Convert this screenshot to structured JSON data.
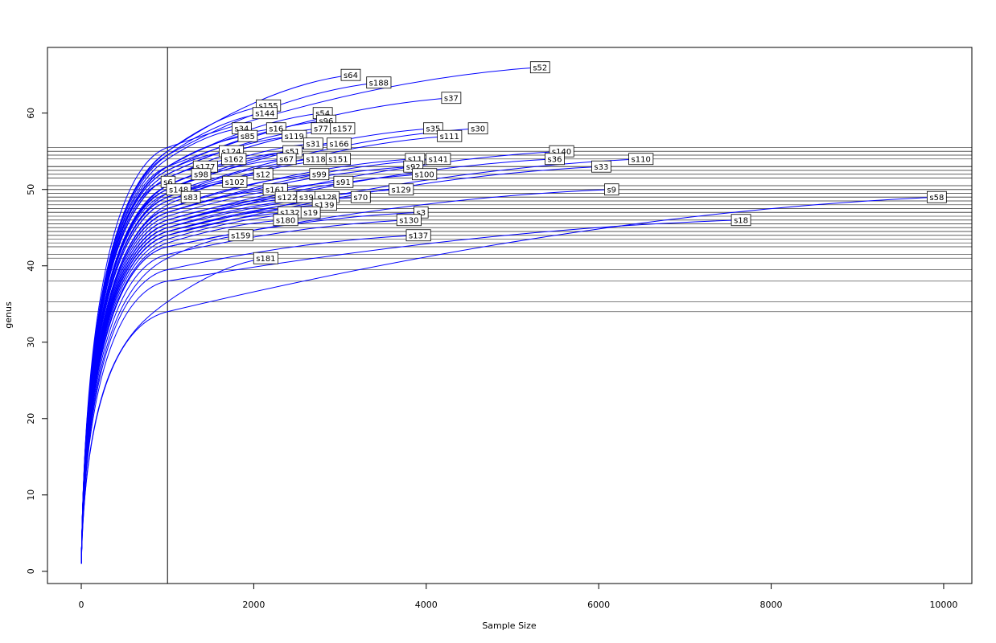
{
  "chart_data": {
    "type": "rarefaction",
    "xlabel": "Sample Size",
    "ylabel": "genus",
    "color": "#0000ff",
    "xlim": [
      -392,
      10327
    ],
    "ylim": [
      -1.6,
      68.6
    ],
    "xticks": [
      0,
      2000,
      4000,
      6000,
      8000,
      10000
    ],
    "yticks": [
      0,
      10,
      20,
      30,
      40,
      50,
      60
    ],
    "vline": 1000,
    "series": [
      {
        "name": "s64",
        "x": [
          1,
          1000,
          3125
        ],
        "values": [
          1,
          55,
          65
        ]
      },
      {
        "name": "s188",
        "x": [
          1,
          1000,
          3450
        ],
        "values": [
          1,
          54.5,
          64
        ]
      },
      {
        "name": "s52",
        "x": [
          1,
          1000,
          5320
        ],
        "values": [
          1,
          55.5,
          66
        ]
      },
      {
        "name": "s37",
        "x": [
          1,
          1000,
          4290
        ],
        "values": [
          1,
          53,
          62
        ]
      },
      {
        "name": "s155",
        "x": [
          1,
          1000,
          2170
        ],
        "values": [
          1,
          55,
          61
        ]
      },
      {
        "name": "s144",
        "x": [
          1,
          1000,
          2130
        ],
        "values": [
          1,
          54.5,
          60
        ]
      },
      {
        "name": "s54",
        "x": [
          1,
          1000,
          2800
        ],
        "values": [
          1,
          53,
          60
        ]
      },
      {
        "name": "s96",
        "x": [
          1,
          1000,
          2840
        ],
        "values": [
          1,
          52.5,
          59
        ]
      },
      {
        "name": "s34",
        "x": [
          1,
          1000,
          1860
        ],
        "values": [
          1,
          54,
          58
        ]
      },
      {
        "name": "s16",
        "x": [
          1,
          1000,
          2260
        ],
        "values": [
          1,
          53,
          58
        ]
      },
      {
        "name": "s77",
        "x": [
          1,
          1000,
          2780
        ],
        "values": [
          1,
          52,
          58
        ]
      },
      {
        "name": "s157",
        "x": [
          1,
          1000,
          3030
        ],
        "values": [
          1,
          51.5,
          58
        ]
      },
      {
        "name": "s35",
        "x": [
          1,
          1000,
          4080
        ],
        "values": [
          1,
          50,
          58
        ]
      },
      {
        "name": "s30",
        "x": [
          1,
          1000,
          4600
        ],
        "values": [
          1,
          49.5,
          58
        ]
      },
      {
        "name": "s85",
        "x": [
          1,
          1000,
          1930
        ],
        "values": [
          1,
          53,
          57
        ]
      },
      {
        "name": "s119",
        "x": [
          1,
          1000,
          2470
        ],
        "values": [
          1,
          52,
          57
        ]
      },
      {
        "name": "s111",
        "x": [
          1,
          1000,
          4270
        ],
        "values": [
          1,
          48.5,
          57
        ]
      },
      {
        "name": "s31",
        "x": [
          1,
          1000,
          2690
        ],
        "values": [
          1,
          50.5,
          56
        ]
      },
      {
        "name": "s166",
        "x": [
          1,
          1000,
          2990
        ],
        "values": [
          1,
          50,
          56
        ]
      },
      {
        "name": "s124",
        "x": [
          1,
          1000,
          1740
        ],
        "values": [
          1,
          52.5,
          55
        ]
      },
      {
        "name": "s51",
        "x": [
          1,
          1000,
          2450
        ],
        "values": [
          1,
          50.5,
          55
        ]
      },
      {
        "name": "s140",
        "x": [
          1,
          1000,
          5570
        ],
        "values": [
          1,
          46,
          55
        ]
      },
      {
        "name": "s162",
        "x": [
          1,
          1000,
          1770
        ],
        "values": [
          1,
          51.5,
          54
        ]
      },
      {
        "name": "s67",
        "x": [
          1,
          1000,
          2380
        ],
        "values": [
          1,
          50,
          54
        ]
      },
      {
        "name": "s118",
        "x": [
          1,
          1000,
          2720
        ],
        "values": [
          1,
          49,
          54
        ]
      },
      {
        "name": "s151",
        "x": [
          1,
          1000,
          2980
        ],
        "values": [
          1,
          48.5,
          54
        ]
      },
      {
        "name": "s11",
        "x": [
          1,
          1000,
          3870
        ],
        "values": [
          1,
          47.5,
          54
        ]
      },
      {
        "name": "s141",
        "x": [
          1,
          1000,
          4140
        ],
        "values": [
          1,
          47,
          54
        ]
      },
      {
        "name": "s36",
        "x": [
          1,
          1000,
          5490
        ],
        "values": [
          1,
          45.5,
          54
        ]
      },
      {
        "name": "s110",
        "x": [
          1,
          1000,
          6490
        ],
        "values": [
          1,
          44.5,
          54
        ]
      },
      {
        "name": "s177",
        "x": [
          1,
          1000,
          1440
        ],
        "values": [
          1,
          51.5,
          53
        ]
      },
      {
        "name": "s92",
        "x": [
          1,
          1000,
          3850
        ],
        "values": [
          1,
          47,
          53
        ]
      },
      {
        "name": "s33",
        "x": [
          1,
          1000,
          6030
        ],
        "values": [
          1,
          44,
          53
        ]
      },
      {
        "name": "s98",
        "x": [
          1,
          1000,
          1390
        ],
        "values": [
          1,
          50.5,
          52
        ]
      },
      {
        "name": "s12",
        "x": [
          1,
          1000,
          2110
        ],
        "values": [
          1,
          49,
          52
        ]
      },
      {
        "name": "s99",
        "x": [
          1,
          1000,
          2760
        ],
        "values": [
          1,
          47.5,
          52
        ]
      },
      {
        "name": "s100",
        "x": [
          1,
          1000,
          3980
        ],
        "values": [
          1,
          45.5,
          52
        ]
      },
      {
        "name": "s6",
        "x": [
          1,
          1007
        ],
        "values": [
          1,
          51
        ]
      },
      {
        "name": "s102",
        "x": [
          1,
          1000,
          1780
        ],
        "values": [
          1,
          49,
          51
        ]
      },
      {
        "name": "s91",
        "x": [
          1,
          1000,
          3040
        ],
        "values": [
          1,
          46.5,
          51
        ]
      },
      {
        "name": "s148",
        "x": [
          1,
          1000,
          1130
        ],
        "values": [
          1,
          49.5,
          50
        ]
      },
      {
        "name": "s161",
        "x": [
          1,
          1000,
          2250
        ],
        "values": [
          1,
          47,
          50
        ]
      },
      {
        "name": "s129",
        "x": [
          1,
          1000,
          3710
        ],
        "values": [
          1,
          45,
          50
        ]
      },
      {
        "name": "s9",
        "x": [
          1,
          1000,
          6150
        ],
        "values": [
          1,
          42.5,
          50
        ]
      },
      {
        "name": "s83",
        "x": [
          1,
          1000,
          1270
        ],
        "values": [
          1,
          48,
          49
        ]
      },
      {
        "name": "s122",
        "x": [
          1,
          1000,
          2390
        ],
        "values": [
          1,
          46,
          49
        ]
      },
      {
        "name": "s39",
        "x": [
          1,
          1000,
          2610
        ],
        "values": [
          1,
          45.5,
          49
        ]
      },
      {
        "name": "s128",
        "x": [
          1,
          1000,
          2850
        ],
        "values": [
          1,
          45,
          49
        ]
      },
      {
        "name": "s70",
        "x": [
          1,
          1000,
          3240
        ],
        "values": [
          1,
          44.5,
          49
        ]
      },
      {
        "name": "s58",
        "x": [
          1,
          1000,
          9920
        ],
        "values": [
          1,
          34,
          49
        ]
      },
      {
        "name": "s139",
        "x": [
          1,
          1000,
          2820
        ],
        "values": [
          1,
          44.5,
          48
        ]
      },
      {
        "name": "s132",
        "x": [
          1,
          1000,
          2420
        ],
        "values": [
          1,
          44,
          47
        ]
      },
      {
        "name": "s19",
        "x": [
          1,
          1000,
          2660
        ],
        "values": [
          1,
          43.5,
          47
        ]
      },
      {
        "name": "s3",
        "x": [
          1,
          1000,
          3940
        ],
        "values": [
          1,
          42.5,
          47
        ]
      },
      {
        "name": "s180",
        "x": [
          1,
          1000,
          2370
        ],
        "values": [
          1,
          43,
          46
        ]
      },
      {
        "name": "s130",
        "x": [
          1,
          1000,
          3800
        ],
        "values": [
          1,
          41.5,
          46
        ]
      },
      {
        "name": "s18",
        "x": [
          1,
          1000,
          7650
        ],
        "values": [
          1,
          38,
          46
        ]
      },
      {
        "name": "s159",
        "x": [
          1,
          1000,
          1850
        ],
        "values": [
          1,
          41,
          44
        ]
      },
      {
        "name": "s137",
        "x": [
          1,
          1000,
          3910
        ],
        "values": [
          1,
          39.5,
          44
        ]
      },
      {
        "name": "s181",
        "x": [
          1,
          1000,
          2140
        ],
        "values": [
          1,
          35.3,
          41
        ]
      }
    ]
  }
}
